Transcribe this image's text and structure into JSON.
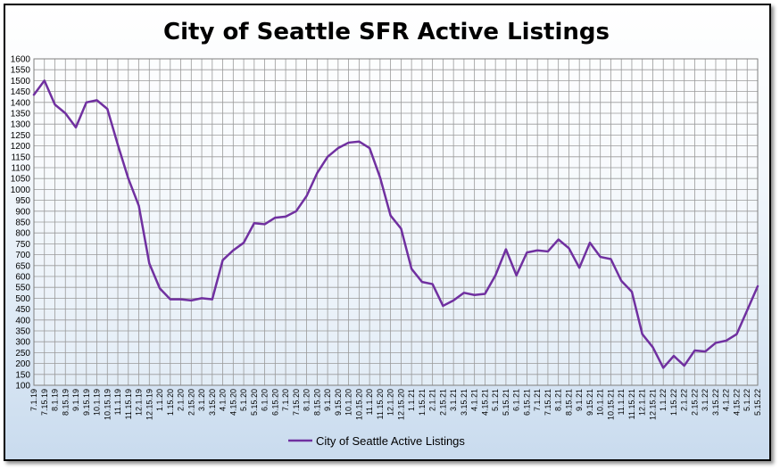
{
  "chart_data": {
    "type": "line",
    "title": "City of Seattle SFR Active Listings",
    "xlabel": "",
    "ylabel": "",
    "ylim": [
      100,
      1600
    ],
    "ytick_step": 50,
    "grid": true,
    "legend_position": "bottom-center",
    "line_color": "#7030A0",
    "categories": [
      "7.1.19",
      "7.15.19",
      "8.1.19",
      "8.15.19",
      "9.1.19",
      "9.15.19",
      "10.1.19",
      "10.15.19",
      "11.1.19",
      "11.15.19",
      "12.1.19",
      "12.15.19",
      "1.1.20",
      "1.15.20",
      "2.1.20",
      "2.15.20",
      "3.1.20",
      "3.15.20",
      "4.1.20",
      "4.15.20",
      "5.1.20",
      "5.15.20",
      "6.1.20",
      "6.15.20",
      "7.1.20",
      "7.15.20",
      "8.1.20",
      "8.15.20",
      "9.1.20",
      "9.15.20",
      "10.1.20",
      "10.15.20",
      "11.1.20",
      "11.15.20",
      "12.1.20",
      "12.15.20",
      "1.1.21",
      "1.15.21",
      "2.1.21",
      "2.15.21",
      "3.1.21",
      "3.15.21",
      "4.1.21",
      "4.15.21",
      "5.1.21",
      "5.15.21",
      "6.1.21",
      "6.15.21",
      "7.1.21",
      "7.15.21",
      "8.1.21",
      "8.15.21",
      "9.1.21",
      "9.15.21",
      "10.1.21",
      "10.15.21",
      "11.1.21",
      "11.15.21",
      "12.1.21",
      "12.15.21",
      "1.1.22",
      "1.15.22",
      "2.1.22",
      "2.15.22",
      "3.1.22",
      "3.15.22",
      "4.1.22",
      "4.15.22",
      "5.1.22",
      "5.15.22"
    ],
    "series": [
      {
        "name": "City of Seattle Active Listings",
        "values": [
          1435,
          1500,
          1390,
          1350,
          1285,
          1400,
          1410,
          1370,
          1205,
          1050,
          925,
          660,
          545,
          495,
          495,
          490,
          500,
          495,
          675,
          720,
          755,
          845,
          840,
          870,
          875,
          900,
          970,
          1075,
          1150,
          1190,
          1215,
          1220,
          1190,
          1055,
          880,
          820,
          635,
          575,
          565,
          465,
          490,
          525,
          515,
          520,
          605,
          725,
          605,
          710,
          720,
          715,
          770,
          730,
          640,
          755,
          690,
          680,
          580,
          530,
          335,
          275,
          180,
          235,
          190,
          260,
          255,
          295,
          305,
          335,
          445,
          555
        ]
      }
    ]
  }
}
